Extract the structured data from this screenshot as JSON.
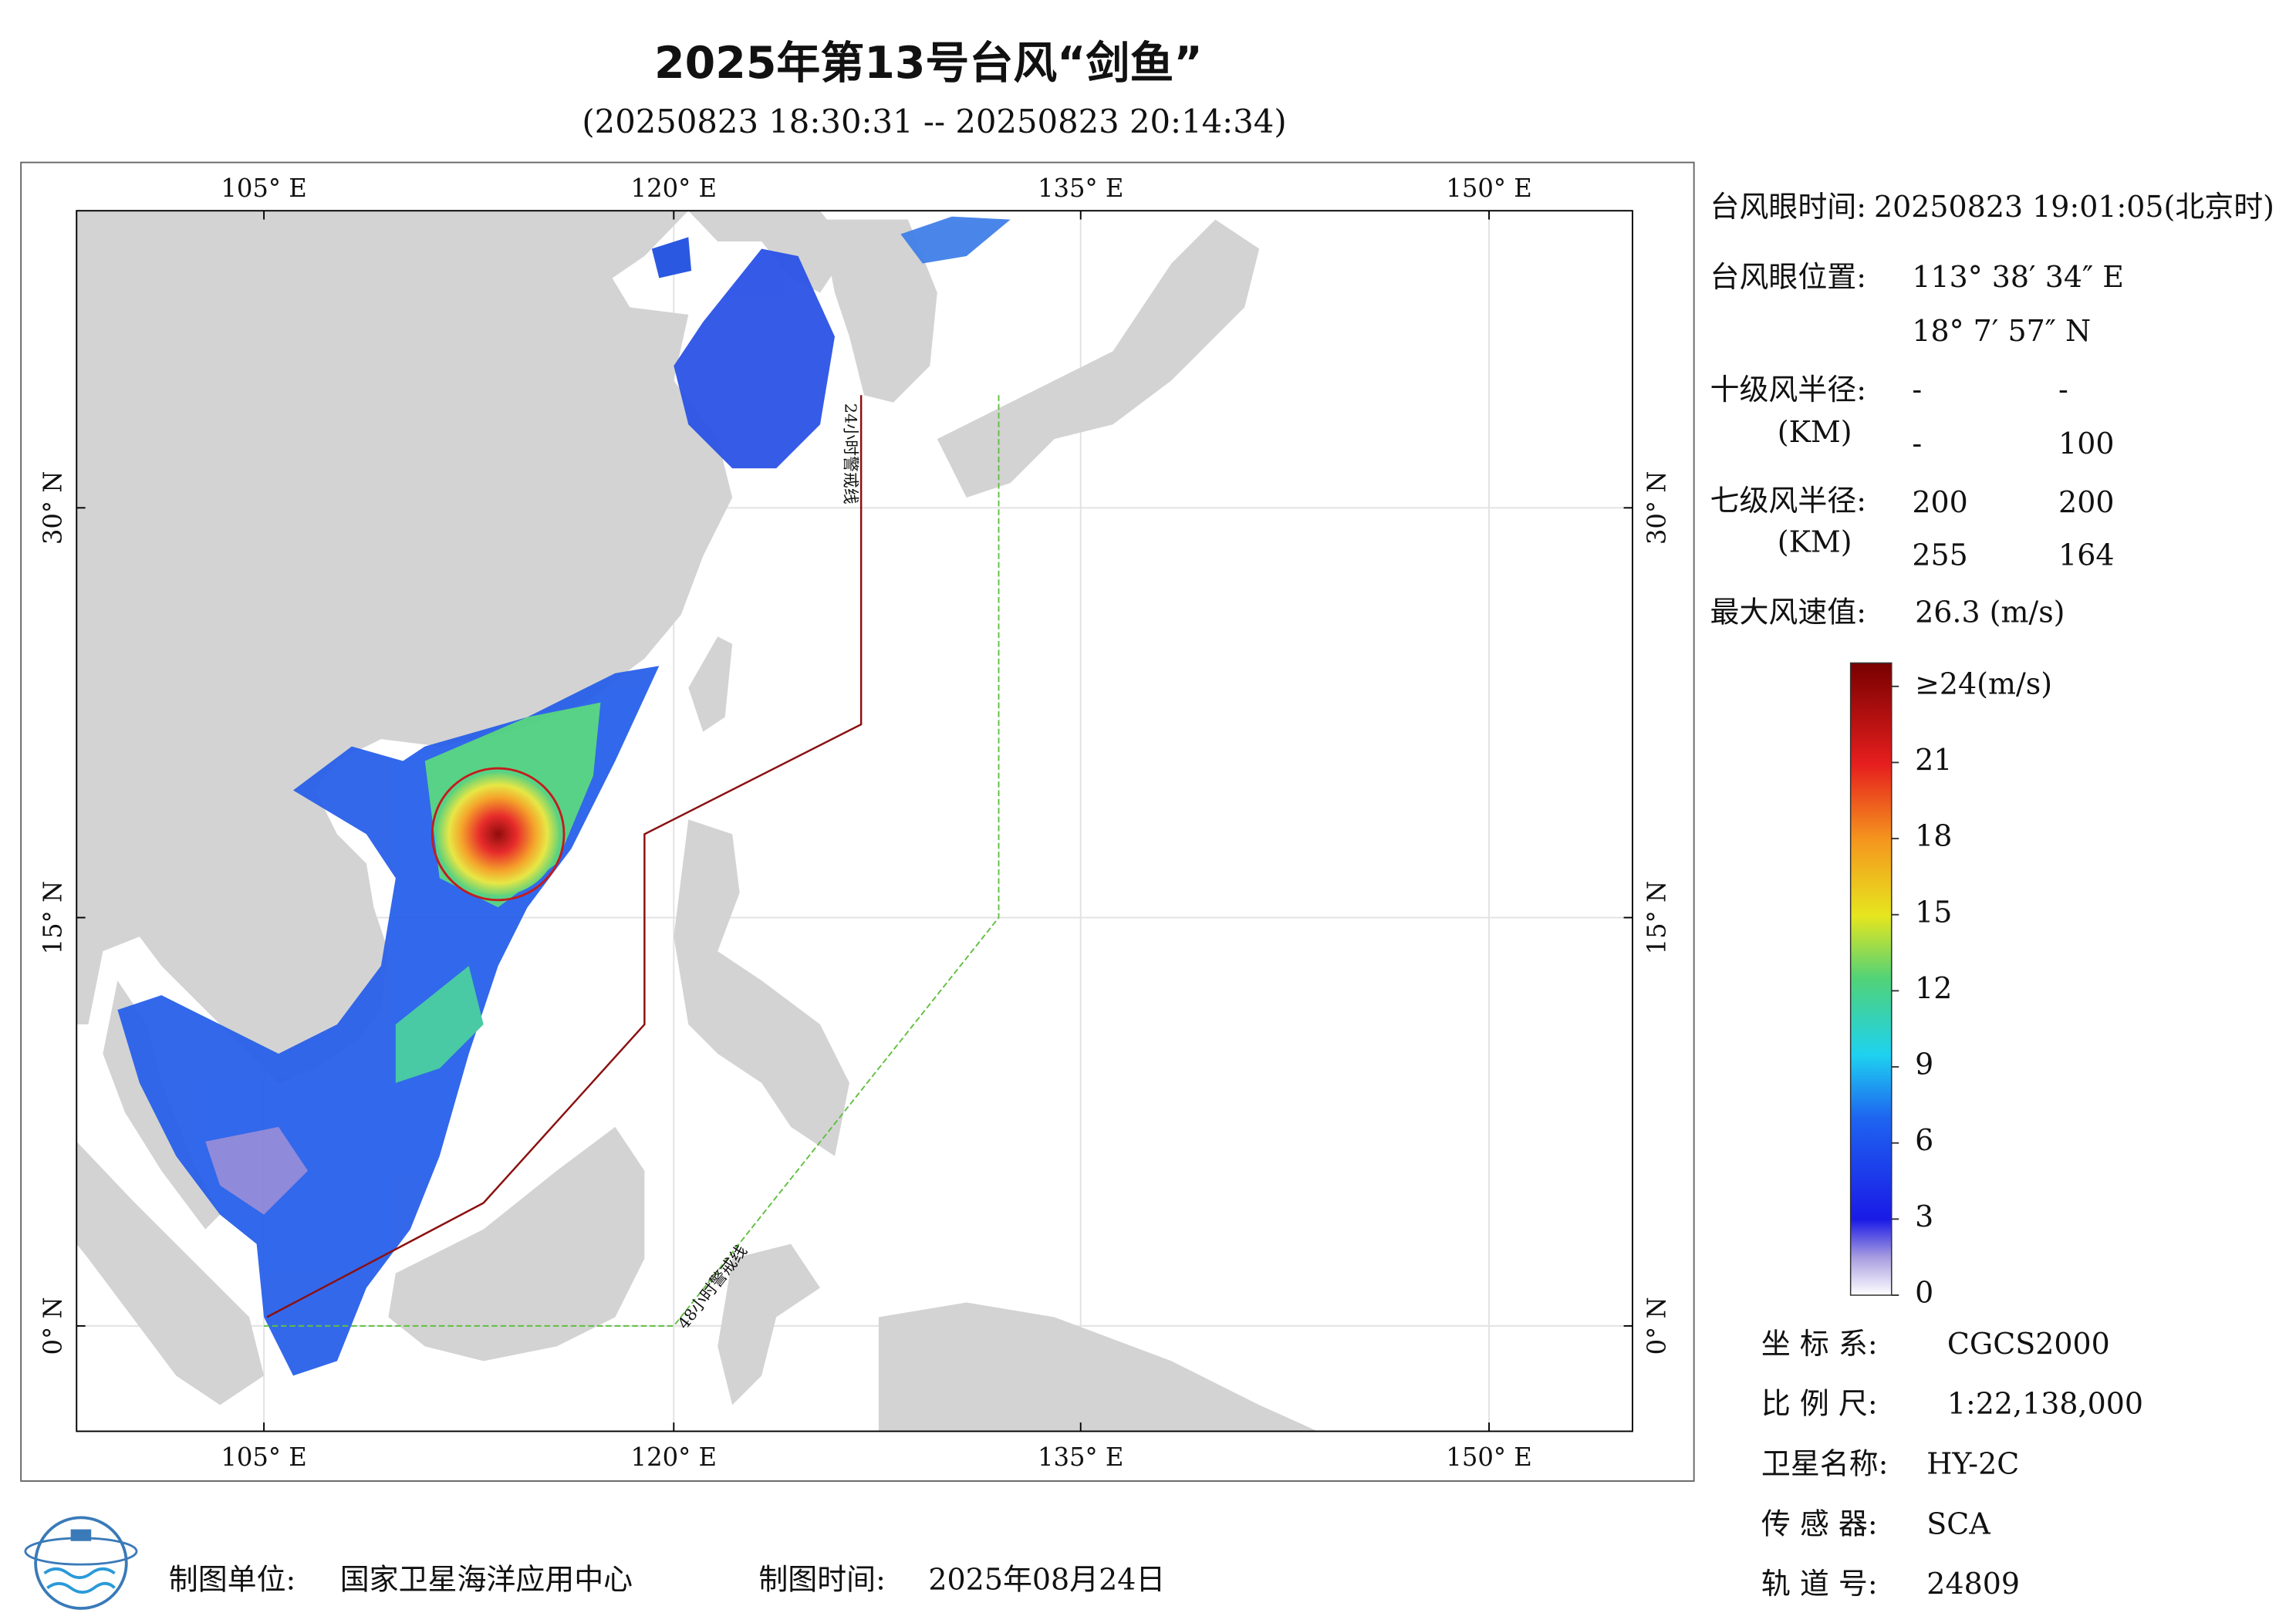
{
  "title": "2025年第13号台风“剑鱼”",
  "subtitle": "(20250823 18:30:31 -- 20250823 20:14:34)",
  "map": {
    "lon_labels": [
      "105° E",
      "120° E",
      "135° E",
      "150° E"
    ],
    "lat_labels": [
      "30° N",
      "15° N",
      "0° N"
    ],
    "warning_lines": [
      "24小时警戒线",
      "48小时警戒线"
    ]
  },
  "info": {
    "eye_time": {
      "label": "台风眼时间:",
      "value": "20250823 19:01:05(北京时)"
    },
    "eye_position": {
      "label": "台风眼位置:",
      "lon": "113° 38′ 34″ E",
      "lat": "18° 7′ 57″ N"
    },
    "r10": {
      "label": "十级风半径:",
      "unit": "(KM)",
      "values": [
        "-",
        "-",
        "-",
        "100"
      ]
    },
    "r7": {
      "label": "七级风半径:",
      "unit": "(KM)",
      "values": [
        "200",
        "200",
        "255",
        "164"
      ]
    },
    "max_wind": {
      "label": "最大风速值:",
      "value": "26.3 (m/s)"
    }
  },
  "colorbar": {
    "range": [
      0,
      24
    ],
    "ticks": [
      0,
      3,
      6,
      9,
      12,
      15,
      18,
      21,
      {
        "value": 24,
        "label": "≥24(m/s)"
      }
    ]
  },
  "meta": [
    {
      "label": "坐 标 系:",
      "value": "CGCS2000"
    },
    {
      "label": "比 例 尺:",
      "value": "1:22,138,000"
    },
    {
      "label": "卫星名称:",
      "value": "HY-2C"
    },
    {
      "label": "传 感 器:",
      "value": "SCA"
    },
    {
      "label": "轨 道 号:",
      "value": "24809"
    }
  ],
  "footer": {
    "maker_label": "制图单位:",
    "maker": "国家卫星海洋应用中心",
    "date_label": "制图时间:",
    "date": "2025年08月24日"
  }
}
